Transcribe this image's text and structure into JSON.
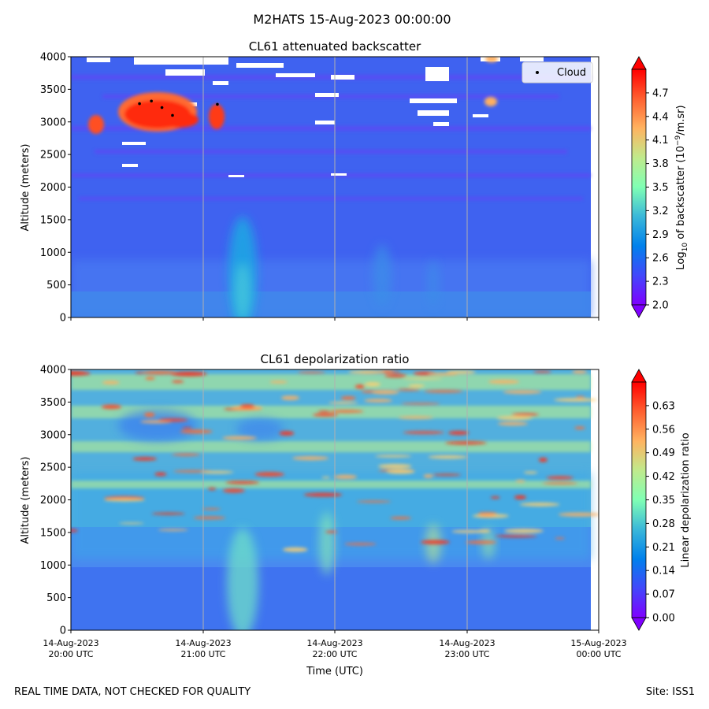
{
  "figure": {
    "suptitle": "M2HATS 15-Aug-2023 00:00:00",
    "footer_left": "REAL TIME DATA, NOT CHECKED FOR QUALITY",
    "footer_right": "Site: ISS1"
  },
  "chart_data": [
    {
      "type": "heatmap",
      "title": "CL61 attenuated backscatter",
      "xlabel": "",
      "ylabel": "Altitude (meters)",
      "ylim": [
        0,
        4000
      ],
      "yticks": [
        "0",
        "500",
        "1000",
        "1500",
        "2000",
        "2500",
        "3000",
        "3500",
        "4000"
      ],
      "xticks": [],
      "colorbar": {
        "label_prefix": "Log",
        "label_sub": "10",
        "label_mid": " of backscatter (10",
        "label_sup": "−9",
        "label_suffix": "/m.sr)",
        "range": [
          2.0,
          5.0
        ],
        "ticks": [
          "2.0",
          "2.3",
          "2.6",
          "2.9",
          "3.2",
          "3.5",
          "3.8",
          "4.1",
          "4.4",
          "4.7"
        ]
      },
      "legend": {
        "label": "Cloud",
        "position": "top-right"
      },
      "cloud_points": [
        {
          "time_h": 0.52,
          "alt": 3280
        },
        {
          "time_h": 0.61,
          "alt": 3320
        },
        {
          "time_h": 0.69,
          "alt": 3220
        },
        {
          "time_h": 0.77,
          "alt": 3100
        },
        {
          "time_h": 1.11,
          "alt": 3270
        }
      ]
    },
    {
      "type": "heatmap",
      "title": "CL61 depolarization ratio",
      "xlabel": "Time (UTC)",
      "ylabel": "Altitude (meters)",
      "ylim": [
        0,
        4000
      ],
      "yticks": [
        "0",
        "500",
        "1000",
        "1500",
        "2000",
        "2500",
        "3000",
        "3500",
        "4000"
      ],
      "xticks": [
        [
          "14-Aug-2023",
          "20:00 UTC"
        ],
        [
          "14-Aug-2023",
          "21:00 UTC"
        ],
        [
          "14-Aug-2023",
          "22:00 UTC"
        ],
        [
          "14-Aug-2023",
          "23:00 UTC"
        ],
        [
          "15-Aug-2023",
          "00:00 UTC"
        ]
      ],
      "colorbar": {
        "label": "Linear depolarization ratio",
        "range": [
          0.0,
          0.7
        ],
        "ticks": [
          "0.00",
          "0.07",
          "0.14",
          "0.21",
          "0.28",
          "0.35",
          "0.42",
          "0.49",
          "0.56",
          "0.63"
        ]
      }
    }
  ]
}
